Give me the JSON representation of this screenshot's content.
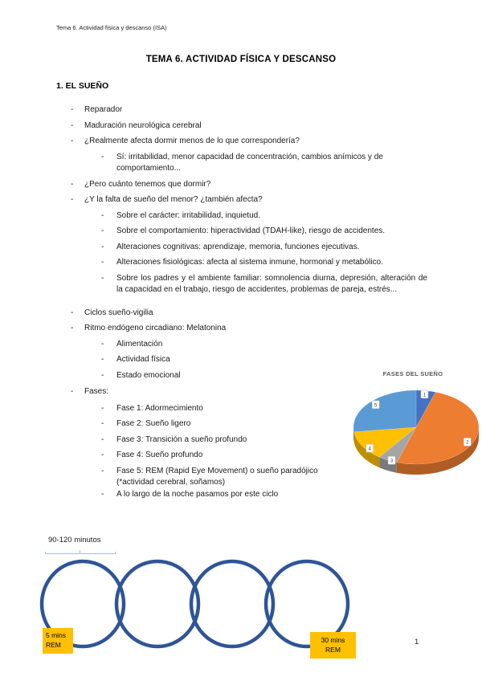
{
  "page": {
    "header": "Tema 6. Actividad física y descanso (ISA)",
    "title": "TEMA 6. ACTIVIDAD FÍSICA Y DESCANSO",
    "section_heading": "1. EL SUEÑO",
    "page_number": "1"
  },
  "document": {
    "bullets": [
      {
        "level": 1,
        "text": "Reparador"
      },
      {
        "level": 1,
        "text": "Maduración neurológica cerebral"
      },
      {
        "level": 1,
        "text": "¿Realmente afecta dormir menos de lo que correspondería?"
      },
      {
        "level": 2,
        "text": "Sí: irritabilidad, menor capacidad de concentración, cambios anímicos y de comportamiento..."
      },
      {
        "level": 1,
        "text": "¿Pero cuánto tenemos que dormir?"
      },
      {
        "level": 1,
        "text": "¿Y la falta de sueño del menor? ¿también afecta?"
      },
      {
        "level": 2,
        "text": "Sobre el carácter: irritabilidad, inquietud."
      },
      {
        "level": 2,
        "text": "Sobre el comportamiento: hiperactividad (TDAH-like), riesgo de accidentes."
      },
      {
        "level": 2,
        "text": "Alteraciones cognitivas: aprendizaje, memoria, funciones ejecutivas."
      },
      {
        "level": 2,
        "text": "Alteraciones fisiológicas: afecta al sistema inmune, hormonal y metabólico."
      },
      {
        "level": 2,
        "text": "Sobre los padres y el ambiente familiar: somnolencia diurna, depresión, alteración de la capacidad en el trabajo, riesgo de accidentes, problemas de pareja, estrés...",
        "justify": true
      },
      {
        "level": 1,
        "text": "Ciclos sueño-vigilia",
        "gap": true
      },
      {
        "level": 1,
        "text": "Ritmo endógeno circadiano: Melatonina"
      },
      {
        "level": 2,
        "text": "Alimentación"
      },
      {
        "level": 2,
        "text": "Actividad física"
      },
      {
        "level": 2,
        "text": "Estado emocional"
      },
      {
        "level": 1,
        "text": "Fases:",
        "gap_sm": true
      },
      {
        "level": 2,
        "text": "Fase 1: Adormecimiento",
        "gap_sm": true
      },
      {
        "level": 2,
        "text": "Fase 2: Sueño ligero"
      },
      {
        "level": 2,
        "text": "Fase 3: Transición a sueño profundo"
      },
      {
        "level": 2,
        "text": "Fase 4: Sueño profundo"
      },
      {
        "level": 2,
        "text": "Fase 5: REM (Rapid Eye Movement) o sueño paradójico (*actividad cerebral, soñamos)",
        "narrow": true,
        "mb0": true
      },
      {
        "level": 2,
        "text": "A lo largo de la noche pasamos por este ciclo"
      }
    ]
  },
  "chart_data": {
    "type": "pie",
    "title": "FASES DEL SUEÑO",
    "style": "3d",
    "legend": "none",
    "labels": [
      "1",
      "2",
      "3",
      "4",
      "5"
    ],
    "values": [
      5,
      50,
      5,
      13,
      27
    ],
    "colors": [
      "#4472c4",
      "#ed7d31",
      "#a5a5a5",
      "#ffc000",
      "#5b9bd5"
    ],
    "start_angle_deg": 0,
    "direction": "clockwise"
  },
  "cycle_diagram": {
    "duration_label": "90-120 minutos",
    "start_label": "5 mins\nREM",
    "end_label": "30 mins\nREM",
    "num_cycles": 4,
    "circle_color": "#2e5597",
    "box_color": "#ffc000"
  }
}
